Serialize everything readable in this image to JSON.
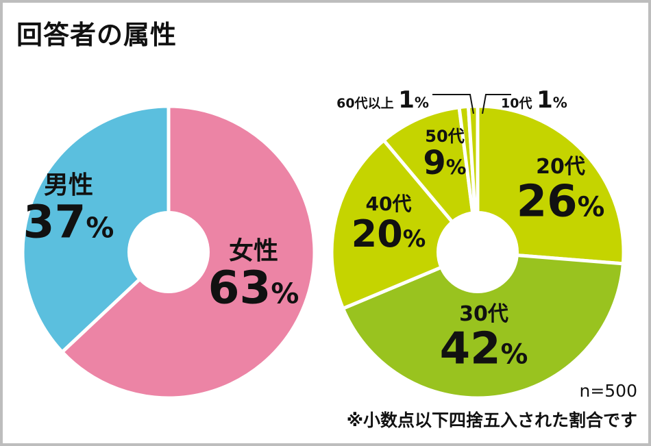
{
  "title": "回答者の属性",
  "sample_note": "n=500",
  "rounding_note": "※小数点以下四捨五入された割合です",
  "chart_data": [
    {
      "type": "pie",
      "title": "",
      "slices": [
        {
          "label": "女性",
          "value": 63,
          "display": "63",
          "color": "#ec84a5"
        },
        {
          "label": "男性",
          "value": 37,
          "display": "37",
          "color": "#5bbfde"
        }
      ],
      "unit": "%",
      "donut": true
    },
    {
      "type": "pie",
      "title": "",
      "slices": [
        {
          "label": "20代",
          "value": 26,
          "display": "26",
          "color": "#c5d400"
        },
        {
          "label": "30代",
          "value": 42,
          "display": "42",
          "color": "#99c31f"
        },
        {
          "label": "40代",
          "value": 20,
          "display": "20",
          "color": "#c5d400"
        },
        {
          "label": "50代",
          "value": 9,
          "display": "9",
          "color": "#c5d400"
        },
        {
          "label": "60代以上",
          "value": 1,
          "display": "1",
          "color": "#c5d400"
        },
        {
          "label": "10代",
          "value": 1,
          "display": "1",
          "color": "#c5d400"
        }
      ],
      "unit": "%",
      "donut": true
    }
  ]
}
